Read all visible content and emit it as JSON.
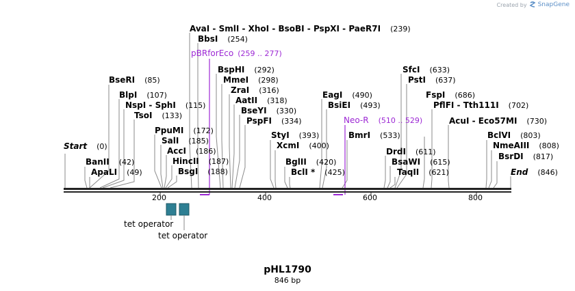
{
  "branding": {
    "created_by": "Created by",
    "app_name": "SnapGene"
  },
  "plasmid": {
    "name": "pHL1790",
    "length_label": "846 bp"
  },
  "ruler": {
    "ticks": [
      "200",
      "400",
      "600",
      "800"
    ]
  },
  "ends": {
    "start_label": "Start",
    "start_pos": "(0)",
    "end_label": "End",
    "end_pos": "(846)"
  },
  "enzymes": [
    {
      "label": "AvaI  -  SmlI  -  XhoI  -  BsoBI  -  PspXI  -  PaeR7I",
      "pos": "(239)"
    },
    {
      "label": "BbsI",
      "pos": "(254)"
    },
    {
      "label": "BspHI",
      "pos": "(292)"
    },
    {
      "label": "MmeI",
      "pos": "(298)"
    },
    {
      "label": "ZraI",
      "pos": "(316)"
    },
    {
      "label": "AatII",
      "pos": "(318)"
    },
    {
      "label": "BseYI",
      "pos": "(330)"
    },
    {
      "label": "PspFI",
      "pos": "(334)"
    },
    {
      "label": "BseRI",
      "pos": "(85)"
    },
    {
      "label": "BlpI",
      "pos": "(107)"
    },
    {
      "label": "NspI  -  SphI",
      "pos": "(115)"
    },
    {
      "label": "TsoI",
      "pos": "(133)"
    },
    {
      "label": "PpuMI",
      "pos": "(172)"
    },
    {
      "label": "SalI",
      "pos": "(185)"
    },
    {
      "label": "AccI",
      "pos": "(186)"
    },
    {
      "label": "HincII",
      "pos": "(187)"
    },
    {
      "label": "BsgI",
      "pos": "(188)"
    },
    {
      "label": "BanII",
      "pos": "(42)"
    },
    {
      "label": "ApaLI",
      "pos": "(49)"
    },
    {
      "label": "EagI",
      "pos": "(490)"
    },
    {
      "label": "BsiEI",
      "pos": "(493)"
    },
    {
      "label": "StyI",
      "pos": "(393)"
    },
    {
      "label": "XcmI",
      "pos": "(400)"
    },
    {
      "label": "BglII",
      "pos": "(420)"
    },
    {
      "label": "BclI *",
      "pos": "(425)"
    },
    {
      "label": "BmrI",
      "pos": "(533)"
    },
    {
      "label": "SfcI",
      "pos": "(633)"
    },
    {
      "label": "PstI",
      "pos": "(637)"
    },
    {
      "label": "FspI",
      "pos": "(686)"
    },
    {
      "label": "PflFI  -  Tth111I",
      "pos": "(702)"
    },
    {
      "label": "AcuI  -  Eco57MI",
      "pos": "(730)"
    },
    {
      "label": "DrdI",
      "pos": "(611)"
    },
    {
      "label": "BsaWI",
      "pos": "(615)"
    },
    {
      "label": "TaqII",
      "pos": "(621)"
    },
    {
      "label": "BclVI",
      "pos": "(803)"
    },
    {
      "label": "NmeAIII",
      "pos": "(808)"
    },
    {
      "label": "BsrDI",
      "pos": "(817)"
    }
  ],
  "primers": [
    {
      "label": "pBRforEco",
      "range": "(259 .. 277)"
    },
    {
      "label": "Neo-R",
      "range": "(510 .. 529)"
    }
  ],
  "features": [
    {
      "label": "tet operator"
    },
    {
      "label": "tet operator"
    }
  ],
  "colors": {
    "backbone": "#222222",
    "primer": "#9c27d4",
    "feature": "#2e7f93",
    "leader": "#8a8a8a"
  }
}
